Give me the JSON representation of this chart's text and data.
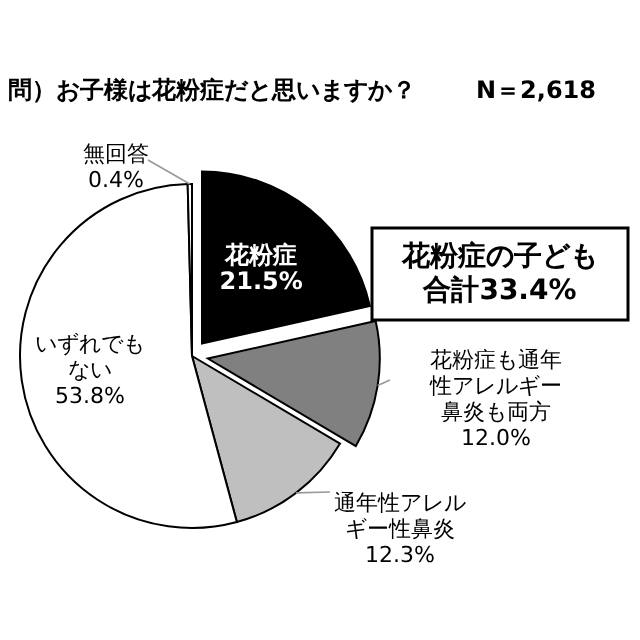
{
  "chart_data": {
    "type": "pie",
    "title": "問）お子様は花粉症だと思いますか？",
    "subtitle": "N＝2,618",
    "categories": [
      "花粉症",
      "花粉症も通年性アレルギー鼻炎も両方",
      "通年性アレルギー性鼻炎",
      "いずれでもない",
      "無回答"
    ],
    "values": [
      21.5,
      12.0,
      12.3,
      53.8,
      0.4
    ],
    "value_labels": [
      "21.5%",
      "12.0%",
      "12.3%",
      "53.8%",
      "0.4%"
    ],
    "colors": [
      "#000000",
      "#808080",
      "#bfbfbf",
      "#ffffff",
      "#ffffff"
    ],
    "annotations": [
      "花粉症の子ども合計33.4%"
    ]
  }
}
